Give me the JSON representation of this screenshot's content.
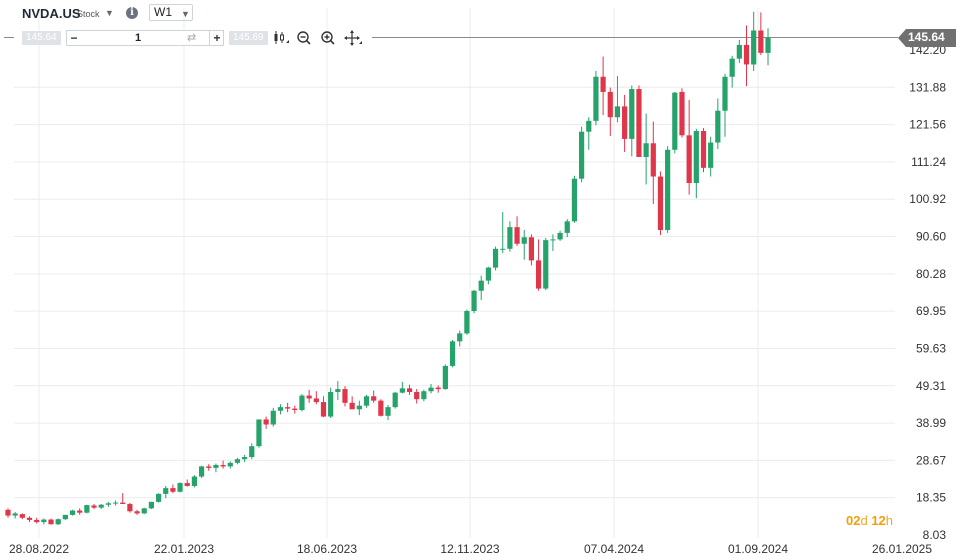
{
  "toolbar": {
    "symbol": "NVDA.US",
    "symbol_type": "Stock",
    "info_icon": "i",
    "timeframe": "W1",
    "sell_price": "145.64",
    "buy_price": "145.69",
    "quantity": "1",
    "minus": "−",
    "plus": "+",
    "icons": [
      "candlestick-type-icon",
      "zoom-out-icon",
      "zoom-in-icon",
      "pan-move-icon"
    ]
  },
  "last_price_label": "145.64",
  "countdown": {
    "days": "02",
    "days_unit": "d",
    "hours": "12",
    "hours_unit": "h"
  },
  "colors": {
    "up": "#26a26b",
    "down": "#e0364a",
    "grid": "#ececec",
    "price_line": "#8a8a8a",
    "badge": "#707070",
    "countdown": "#f59e0b"
  },
  "chart_data": {
    "type": "candlestick",
    "interval": "weekly",
    "y_ticks": [
      "142.20",
      "131.88",
      "121.56",
      "111.24",
      "100.92",
      "90.60",
      "80.28",
      "69.95",
      "59.63",
      "49.31",
      "38.99",
      "28.67",
      "18.35",
      "8.03"
    ],
    "x_ticks": [
      "28.08.2022",
      "22.01.2023",
      "18.06.2023",
      "12.11.2023",
      "07.04.2024",
      "01.09.2024",
      "26.01.2025"
    ],
    "ylim": [
      8.03,
      147.0
    ],
    "last_price": 145.64,
    "candles_ohlc": [
      [
        15.0,
        15.4,
        12.8,
        13.4
      ],
      [
        13.4,
        14.4,
        12.6,
        14.0
      ],
      [
        13.8,
        14.0,
        12.4,
        12.8
      ],
      [
        12.8,
        13.2,
        11.6,
        12.2
      ],
      [
        12.2,
        12.8,
        11.2,
        11.6
      ],
      [
        11.6,
        12.6,
        11.0,
        12.3
      ],
      [
        12.3,
        12.6,
        10.9,
        11.0
      ],
      [
        11.0,
        12.6,
        10.8,
        12.4
      ],
      [
        12.4,
        13.6,
        12.2,
        13.6
      ],
      [
        13.6,
        15.0,
        13.4,
        14.8
      ],
      [
        14.8,
        15.4,
        13.6,
        14.2
      ],
      [
        14.2,
        16.4,
        14.0,
        16.3
      ],
      [
        16.2,
        16.6,
        15.2,
        15.6
      ],
      [
        15.6,
        16.6,
        15.2,
        16.4
      ],
      [
        16.4,
        17.2,
        15.8,
        16.8
      ],
      [
        16.8,
        17.6,
        16.2,
        17.0
      ],
      [
        17.0,
        19.6,
        16.6,
        16.6
      ],
      [
        16.6,
        16.9,
        14.2,
        14.6
      ],
      [
        14.6,
        15.0,
        13.6,
        14.0
      ],
      [
        14.0,
        15.6,
        13.8,
        15.4
      ],
      [
        15.4,
        17.2,
        15.2,
        17.2
      ],
      [
        17.2,
        19.6,
        17.0,
        19.4
      ],
      [
        19.4,
        21.6,
        18.2,
        21.0
      ],
      [
        21.0,
        22.0,
        19.6,
        20.0
      ],
      [
        20.0,
        22.6,
        19.8,
        22.4
      ],
      [
        22.4,
        23.4,
        21.4,
        21.6
      ],
      [
        21.6,
        24.6,
        21.2,
        24.2
      ],
      [
        24.2,
        27.2,
        23.8,
        27.0
      ],
      [
        27.0,
        27.6,
        25.8,
        26.6
      ],
      [
        26.6,
        27.8,
        25.4,
        27.4
      ],
      [
        27.4,
        28.6,
        26.4,
        27.0
      ],
      [
        27.0,
        28.4,
        26.4,
        28.0
      ],
      [
        28.0,
        29.4,
        27.6,
        29.0
      ],
      [
        29.0,
        30.2,
        28.2,
        29.6
      ],
      [
        29.6,
        33.4,
        29.0,
        32.6
      ],
      [
        32.6,
        40.0,
        32.2,
        40.0
      ],
      [
        40.0,
        40.8,
        37.4,
        38.6
      ],
      [
        38.6,
        43.2,
        38.0,
        42.4
      ],
      [
        42.4,
        44.2,
        41.4,
        43.4
      ],
      [
        43.4,
        44.6,
        42.0,
        43.0
      ],
      [
        43.0,
        43.8,
        41.6,
        42.6
      ],
      [
        42.6,
        47.0,
        42.2,
        46.6
      ],
      [
        46.6,
        48.2,
        44.6,
        45.8
      ],
      [
        45.8,
        47.8,
        44.2,
        44.8
      ],
      [
        44.8,
        46.4,
        40.6,
        40.8
      ],
      [
        40.8,
        48.8,
        40.4,
        47.6
      ],
      [
        47.6,
        50.6,
        45.4,
        48.4
      ],
      [
        48.4,
        49.2,
        43.6,
        44.6
      ],
      [
        44.6,
        46.4,
        43.0,
        42.8
      ],
      [
        42.8,
        45.2,
        41.2,
        43.8
      ],
      [
        43.8,
        46.8,
        43.2,
        46.4
      ],
      [
        46.4,
        48.0,
        44.6,
        45.2
      ],
      [
        45.2,
        45.6,
        40.8,
        41.0
      ],
      [
        41.0,
        44.0,
        39.8,
        43.4
      ],
      [
        43.4,
        47.6,
        43.0,
        47.4
      ],
      [
        47.4,
        50.4,
        47.2,
        48.6
      ],
      [
        48.6,
        49.6,
        46.8,
        47.6
      ],
      [
        47.6,
        48.4,
        44.4,
        45.6
      ],
      [
        45.6,
        48.2,
        45.0,
        47.8
      ],
      [
        47.8,
        49.8,
        47.2,
        48.8
      ],
      [
        48.8,
        49.4,
        47.4,
        48.4
      ],
      [
        48.4,
        55.2,
        48.2,
        54.8
      ],
      [
        54.8,
        62.0,
        54.4,
        61.6
      ],
      [
        61.6,
        64.6,
        60.2,
        63.8
      ],
      [
        63.8,
        70.4,
        63.4,
        70.0
      ],
      [
        70.0,
        75.8,
        69.4,
        75.6
      ],
      [
        75.6,
        79.8,
        73.0,
        78.4
      ],
      [
        78.4,
        82.2,
        77.4,
        82.0
      ],
      [
        82.0,
        87.8,
        81.2,
        87.2
      ],
      [
        87.2,
        97.4,
        86.0,
        87.2
      ],
      [
        87.2,
        94.8,
        86.4,
        93.2
      ],
      [
        93.2,
        96.2,
        88.0,
        88.6
      ],
      [
        88.6,
        92.4,
        84.2,
        90.4
      ],
      [
        90.4,
        91.2,
        82.6,
        84.0
      ],
      [
        84.0,
        89.8,
        75.6,
        76.2
      ],
      [
        76.2,
        90.2,
        75.8,
        89.6
      ],
      [
        89.6,
        91.2,
        86.6,
        89.8
      ],
      [
        89.8,
        92.2,
        89.4,
        91.6
      ],
      [
        91.6,
        95.4,
        90.4,
        94.8
      ],
      [
        94.8,
        107.4,
        94.4,
        106.6
      ],
      [
        106.6,
        121.0,
        105.6,
        119.6
      ],
      [
        119.6,
        123.6,
        114.6,
        122.6
      ],
      [
        122.6,
        136.4,
        121.4,
        134.8
      ],
      [
        134.8,
        140.4,
        124.2,
        130.6
      ],
      [
        130.6,
        131.8,
        118.4,
        123.6
      ],
      [
        123.6,
        135.0,
        122.2,
        126.6
      ],
      [
        126.6,
        129.8,
        114.0,
        117.6
      ],
      [
        117.6,
        132.4,
        112.8,
        131.4
      ],
      [
        131.4,
        132.4,
        113.6,
        112.6
      ],
      [
        112.6,
        124.6,
        105.0,
        116.4
      ],
      [
        116.4,
        122.4,
        99.6,
        107.2
      ],
      [
        107.2,
        108.6,
        91.0,
        92.4
      ],
      [
        92.4,
        115.6,
        91.6,
        114.6
      ],
      [
        114.6,
        130.6,
        113.6,
        130.4
      ],
      [
        130.6,
        131.6,
        118.0,
        118.6
      ],
      [
        118.6,
        128.4,
        102.2,
        105.4
      ],
      [
        105.4,
        120.4,
        101.2,
        119.8
      ],
      [
        119.8,
        120.6,
        108.4,
        109.6
      ],
      [
        109.6,
        118.2,
        107.2,
        116.6
      ],
      [
        116.6,
        128.8,
        114.8,
        125.4
      ],
      [
        125.4,
        135.6,
        118.2,
        134.8
      ],
      [
        134.8,
        140.6,
        131.8,
        139.8
      ],
      [
        139.8,
        145.0,
        138.6,
        143.6
      ],
      [
        143.6,
        149.0,
        132.2,
        138.2
      ],
      [
        138.2,
        152.8,
        136.4,
        147.6
      ],
      [
        147.6,
        152.6,
        140.8,
        141.4
      ],
      [
        141.4,
        148.2,
        138.0,
        145.64
      ]
    ]
  }
}
